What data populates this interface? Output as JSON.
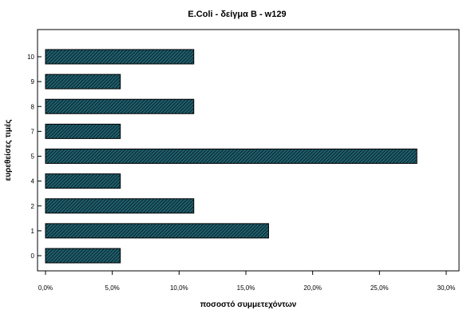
{
  "chart_data": {
    "type": "bar",
    "orientation": "horizontal",
    "title": "E.Coli - δείγμα Β - w129",
    "xlabel": "ποσοστό συμμετεχόντων",
    "ylabel": "ευρεθείσες τιμές",
    "categories": [
      "10",
      "9",
      "8",
      "7",
      "5",
      "4",
      "2",
      "1",
      "0"
    ],
    "values": [
      11.1,
      5.6,
      11.1,
      5.6,
      27.8,
      5.6,
      11.1,
      16.7,
      5.6
    ],
    "xlim": [
      0,
      30
    ],
    "xticks": [
      "0,0%",
      "5,0%",
      "10,0%",
      "15,0%",
      "20,0%",
      "25,0%",
      "30,0%"
    ],
    "grid": false,
    "legend": "none",
    "bar_fill": "#1f5f6e",
    "bar_hatch": "#000000"
  }
}
